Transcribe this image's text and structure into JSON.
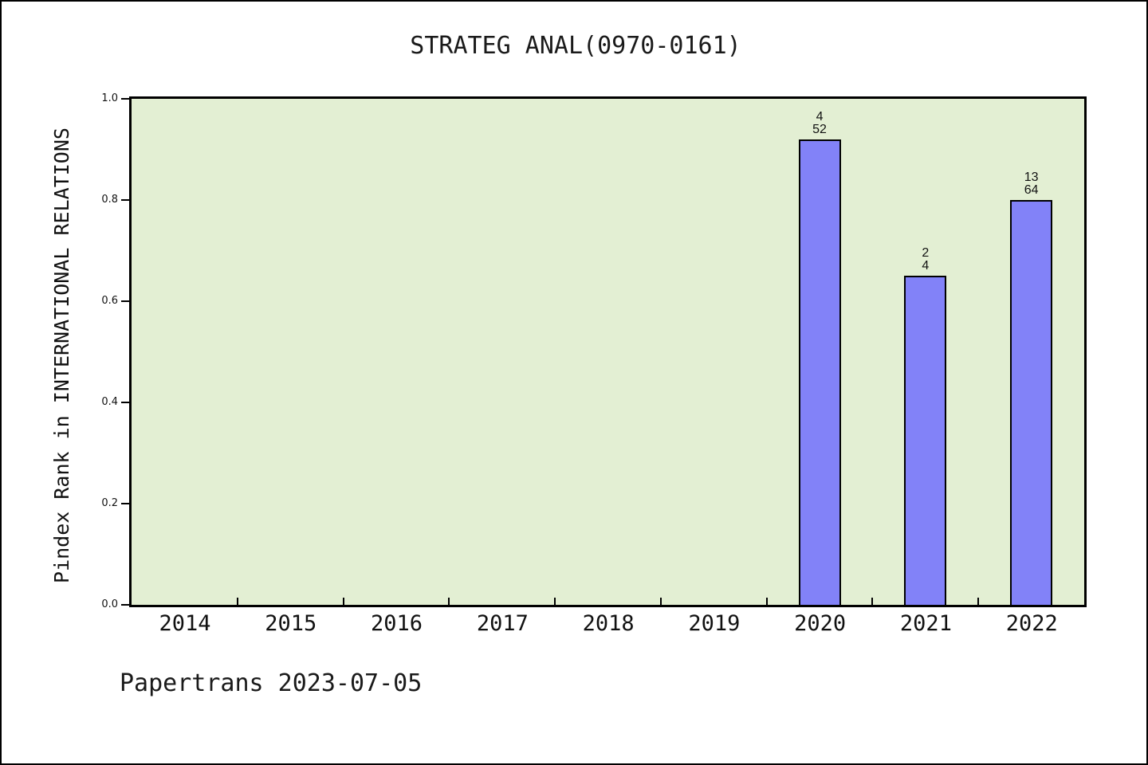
{
  "title": "STRATEG ANAL(0970-0161)",
  "footer": "Papertrans 2023-07-05",
  "colors": {
    "bar_fill": "#8282f8",
    "bar_edge": "#000000",
    "plot_background": "#e3efd3",
    "figure_background": "#ffffff"
  },
  "chart_data": {
    "type": "bar",
    "title": "STRATEG ANAL(0970-0161)",
    "xlabel": "",
    "ylabel": "Pindex Rank in INTERNATIONAL RELATIONS",
    "categories": [
      "2014",
      "2015",
      "2016",
      "2017",
      "2018",
      "2019",
      "2020",
      "2021",
      "2022"
    ],
    "values": [
      null,
      null,
      null,
      null,
      null,
      null,
      0.92,
      0.65,
      0.8
    ],
    "bar_labels": [
      null,
      null,
      null,
      null,
      null,
      null,
      {
        "top": "4",
        "bottom": "52"
      },
      {
        "top": "2",
        "bottom": "4"
      },
      {
        "top": "13",
        "bottom": "64"
      }
    ],
    "ylim": [
      0,
      1
    ],
    "yticks": [
      {
        "label": "0.0",
        "value": 0.0
      },
      {
        "label": "0.2",
        "value": 0.2
      },
      {
        "label": "0.4",
        "value": 0.4
      },
      {
        "label": "0.6",
        "value": 0.6
      },
      {
        "label": "0.8",
        "value": 0.8
      },
      {
        "label": "1.0",
        "value": 1.0
      }
    ],
    "grid": false,
    "legend": null,
    "annotation": "Papertrans 2023-07-05"
  }
}
